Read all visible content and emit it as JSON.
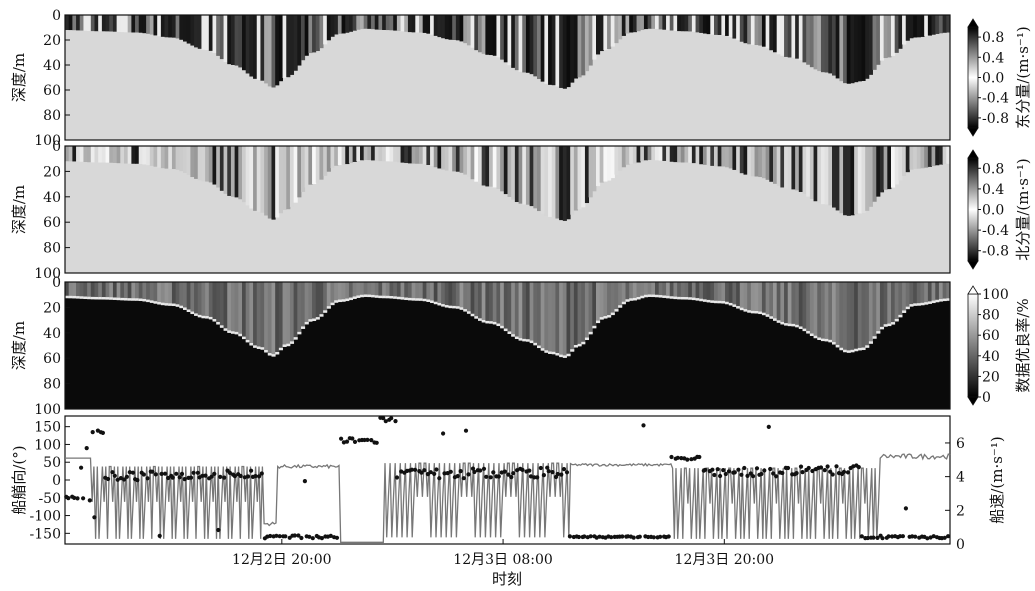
{
  "chart_data": [
    {
      "type": "heatmap",
      "ylabel": "深度/m",
      "yticks": [
        0,
        20,
        40,
        60,
        80,
        100
      ],
      "colorbar": {
        "label": "东分量/(m·s⁻¹)",
        "ticks": [
          "0.8",
          "0.4",
          "0.0",
          "-0.4",
          "-0.8"
        ],
        "range": [
          -1,
          1
        ],
        "scheme": "black-white-black"
      },
      "ylim": [
        0,
        100
      ],
      "grid": false
    },
    {
      "type": "heatmap",
      "ylabel": "深度/m",
      "yticks": [
        0,
        20,
        40,
        60,
        80,
        100
      ],
      "colorbar": {
        "label": "北分量/(m·s⁻¹)",
        "ticks": [
          "0.8",
          "0.4",
          "0.0",
          "-0.4",
          "-0.8"
        ],
        "range": [
          -1,
          1
        ],
        "scheme": "black-white-black"
      },
      "ylim": [
        0,
        100
      ],
      "grid": false
    },
    {
      "type": "heatmap",
      "ylabel": "深度/m",
      "yticks": [
        0,
        20,
        40,
        60,
        80,
        100
      ],
      "colorbar": {
        "label": "数据优良率/%",
        "ticks": [
          "100",
          "80",
          "60",
          "40",
          "20",
          "0"
        ],
        "range": [
          0,
          100
        ],
        "scheme": "black-to-white"
      },
      "ylim": [
        0,
        100
      ],
      "grid": false
    },
    {
      "type": "line",
      "ylabel": "船艏向/(°)",
      "y2label": "船速/(m·s⁻¹)",
      "xlabel": "时刻",
      "xticks": [
        "12月2日  20:00",
        "12月3日  08:00",
        "12月3日  20:00"
      ],
      "yticks": [
        150,
        100,
        50,
        0,
        -50,
        -100,
        -150
      ],
      "y2ticks": [
        0,
        2,
        4,
        6
      ],
      "ylim": [
        -180,
        180
      ],
      "y2lim": [
        0,
        7.6
      ],
      "grid": false,
      "series": [
        {
          "role": "heading",
          "style": "dots",
          "axis": "left"
        },
        {
          "role": "speed",
          "style": "line",
          "axis": "right"
        }
      ]
    }
  ]
}
